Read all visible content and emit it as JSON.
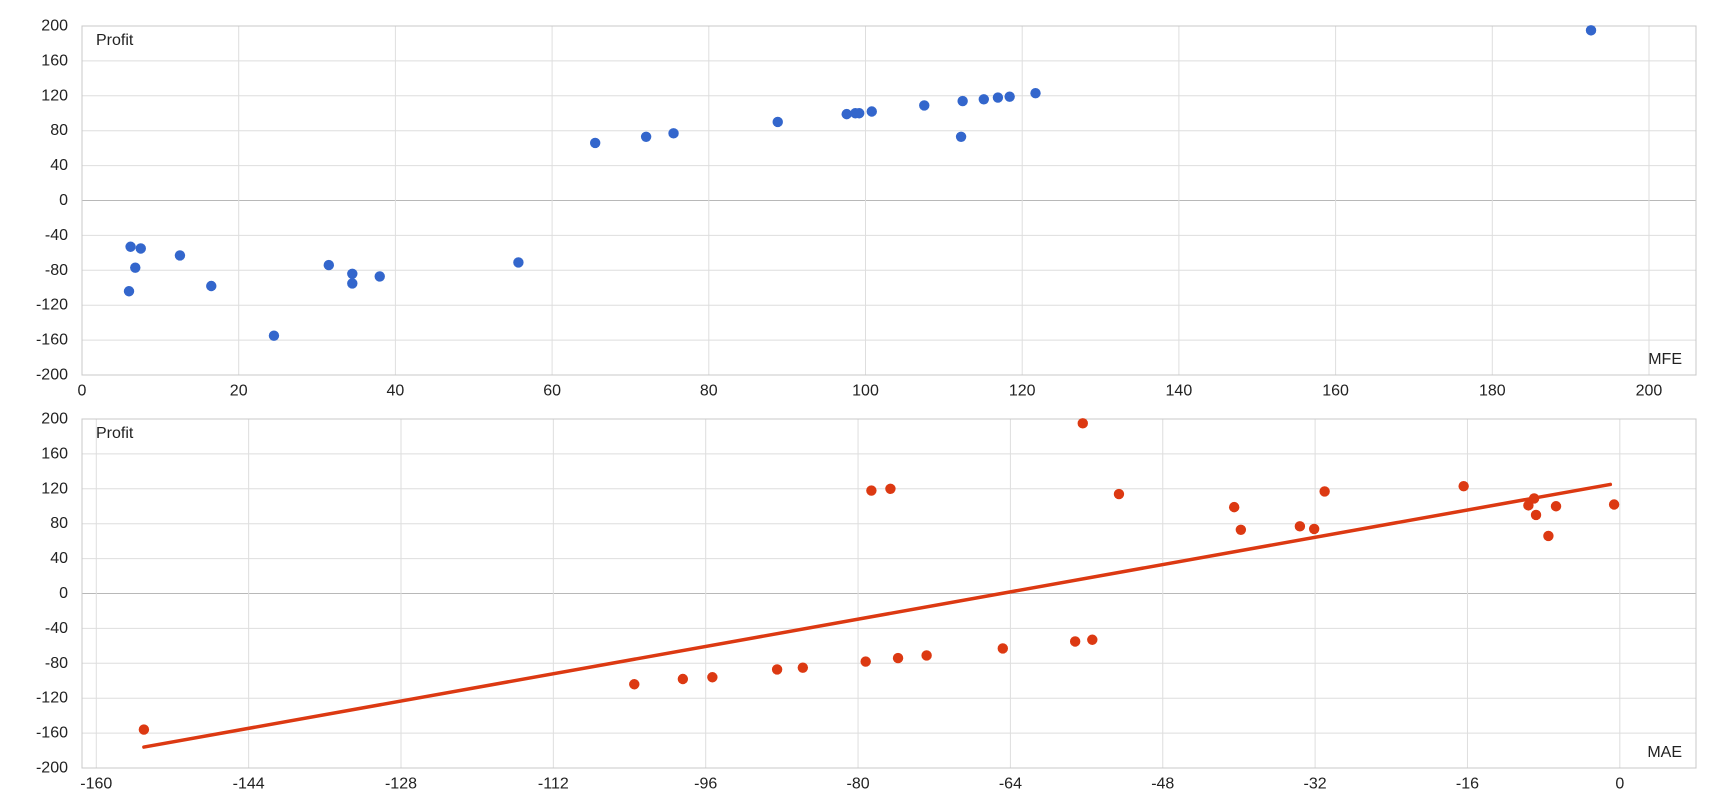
{
  "chart_data": [
    {
      "type": "scatter",
      "title": "",
      "ylabel": "Profit",
      "xlabel": "MFE",
      "xlim": [
        0,
        206
      ],
      "ylim": [
        -200,
        200
      ],
      "xticks": [
        "0",
        "20",
        "40",
        "60",
        "80",
        "100",
        "120",
        "140",
        "160",
        "180",
        "200"
      ],
      "yticks": [
        "200",
        "160",
        "120",
        "80",
        "40",
        "0",
        "-40",
        "-80",
        "-120",
        "-160",
        "-200"
      ],
      "grid": true,
      "color": "#3366cc",
      "points": [
        {
          "x": 6.0,
          "y": -104
        },
        {
          "x": 6.2,
          "y": -53
        },
        {
          "x": 6.8,
          "y": -77
        },
        {
          "x": 7.5,
          "y": -55
        },
        {
          "x": 12.5,
          "y": -63
        },
        {
          "x": 16.5,
          "y": -98
        },
        {
          "x": 24.5,
          "y": -155
        },
        {
          "x": 31.5,
          "y": -74
        },
        {
          "x": 34.5,
          "y": -84
        },
        {
          "x": 34.5,
          "y": -95
        },
        {
          "x": 38.0,
          "y": -87
        },
        {
          "x": 55.7,
          "y": -71
        },
        {
          "x": 65.5,
          "y": 66
        },
        {
          "x": 72.0,
          "y": 73
        },
        {
          "x": 75.5,
          "y": 77
        },
        {
          "x": 88.8,
          "y": 90
        },
        {
          "x": 97.6,
          "y": 99
        },
        {
          "x": 98.7,
          "y": 100
        },
        {
          "x": 99.2,
          "y": 100
        },
        {
          "x": 100.8,
          "y": 102
        },
        {
          "x": 107.5,
          "y": 109
        },
        {
          "x": 112.2,
          "y": 73
        },
        {
          "x": 112.4,
          "y": 114
        },
        {
          "x": 115.1,
          "y": 116
        },
        {
          "x": 116.9,
          "y": 118
        },
        {
          "x": 118.4,
          "y": 119
        },
        {
          "x": 121.7,
          "y": 123
        },
        {
          "x": 192.6,
          "y": 195
        }
      ]
    },
    {
      "type": "scatter",
      "title": "",
      "ylabel": "Profit",
      "xlabel": "MAE",
      "xlim": [
        -161.5,
        8
      ],
      "ylim": [
        -200,
        200
      ],
      "xticks": [
        "-160",
        "-144",
        "-128",
        "-112",
        "-96",
        "-80",
        "-64",
        "-48",
        "-32",
        "-16",
        "0"
      ],
      "yticks": [
        "200",
        "160",
        "120",
        "80",
        "40",
        "0",
        "-40",
        "-80",
        "-120",
        "-160",
        "-200"
      ],
      "grid": true,
      "color": "#dc3912",
      "trendline": {
        "x": [
          -155,
          -1
        ],
        "y": [
          -176,
          125
        ]
      },
      "points": [
        {
          "x": -155.0,
          "y": -156
        },
        {
          "x": -103.5,
          "y": -104
        },
        {
          "x": -98.4,
          "y": -98
        },
        {
          "x": -95.3,
          "y": -96
        },
        {
          "x": -88.5,
          "y": -87
        },
        {
          "x": -85.8,
          "y": -85
        },
        {
          "x": -79.2,
          "y": -78
        },
        {
          "x": -75.8,
          "y": -74
        },
        {
          "x": -72.8,
          "y": -71
        },
        {
          "x": -64.8,
          "y": -63
        },
        {
          "x": -57.2,
          "y": -55
        },
        {
          "x": -55.4,
          "y": -53
        },
        {
          "x": -78.6,
          "y": 118
        },
        {
          "x": -76.6,
          "y": 120
        },
        {
          "x": -56.4,
          "y": 195
        },
        {
          "x": -52.6,
          "y": 114
        },
        {
          "x": -40.5,
          "y": 99
        },
        {
          "x": -39.8,
          "y": 73
        },
        {
          "x": -33.6,
          "y": 77
        },
        {
          "x": -32.1,
          "y": 74
        },
        {
          "x": -31.0,
          "y": 117
        },
        {
          "x": -16.4,
          "y": 123
        },
        {
          "x": -9.6,
          "y": 101
        },
        {
          "x": -9.0,
          "y": 109
        },
        {
          "x": -8.8,
          "y": 90
        },
        {
          "x": -7.5,
          "y": 66
        },
        {
          "x": -6.7,
          "y": 100
        },
        {
          "x": -0.6,
          "y": 102
        }
      ]
    }
  ]
}
